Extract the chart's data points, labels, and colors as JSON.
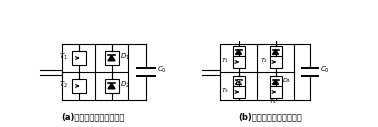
{
  "bg_color": "#ffffff",
  "line_color": "#000000",
  "label_a": "(a)半桥子模块旁路示意图",
  "label_b": "(b)全桥子模块旁路示意图",
  "figsize": [
    3.78,
    1.27
  ],
  "dpi": 100
}
